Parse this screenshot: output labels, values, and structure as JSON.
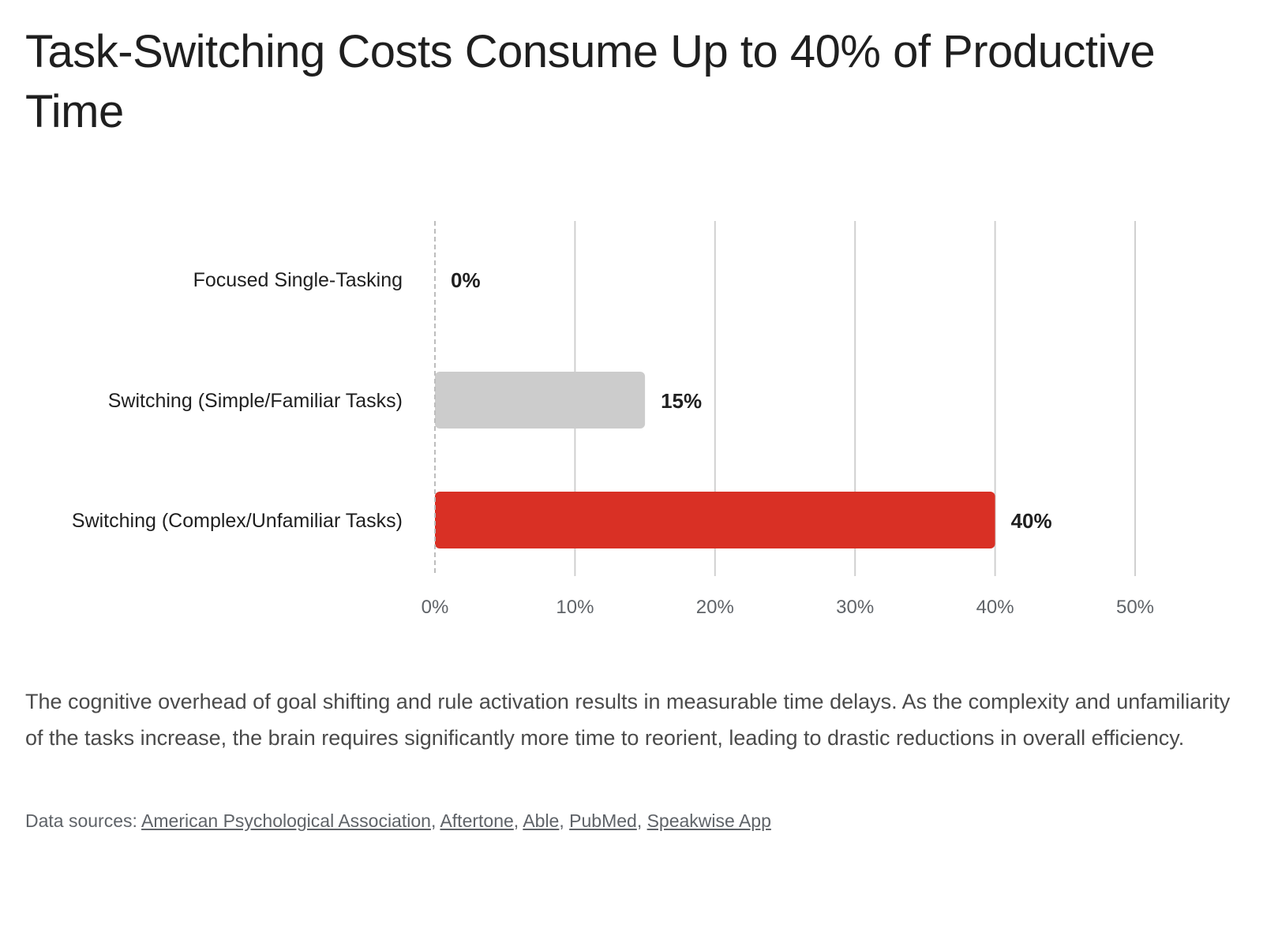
{
  "page": {
    "title": "Task-Switching Costs Consume Up to 40% of Productive Time",
    "description": "The cognitive overhead of goal shifting and rule activation results in measurable time delays. As the complexity and unfamiliarity of the tasks increase, the brain requires significantly more time to reorient, leading to drastic reductions in overall efficiency.",
    "sources_label": "Data sources:",
    "sources": [
      "American Psychological Association",
      "Aftertone",
      "Able",
      "PubMed",
      "Speakwise App"
    ]
  },
  "chart_data": {
    "type": "bar",
    "orientation": "horizontal",
    "title": "Task-Switching Costs Consume Up to 40% of Productive Time",
    "xlabel": "",
    "ylabel": "",
    "categories": [
      "Focused Single-Tasking",
      "Switching (Simple/Familiar Tasks)",
      "Switching (Complex/Unfamiliar Tasks)"
    ],
    "values": [
      0,
      15,
      40
    ],
    "value_labels": [
      "0%",
      "15%",
      "40%"
    ],
    "bar_colors": [
      "#cccccc",
      "#cccccc",
      "#d93025"
    ],
    "xlim": [
      0,
      50
    ],
    "x_ticks": [
      0,
      10,
      20,
      30,
      40,
      50
    ],
    "x_tick_labels": [
      "0%",
      "10%",
      "20%",
      "30%",
      "40%",
      "50%"
    ],
    "grid": true,
    "legend": "none"
  }
}
